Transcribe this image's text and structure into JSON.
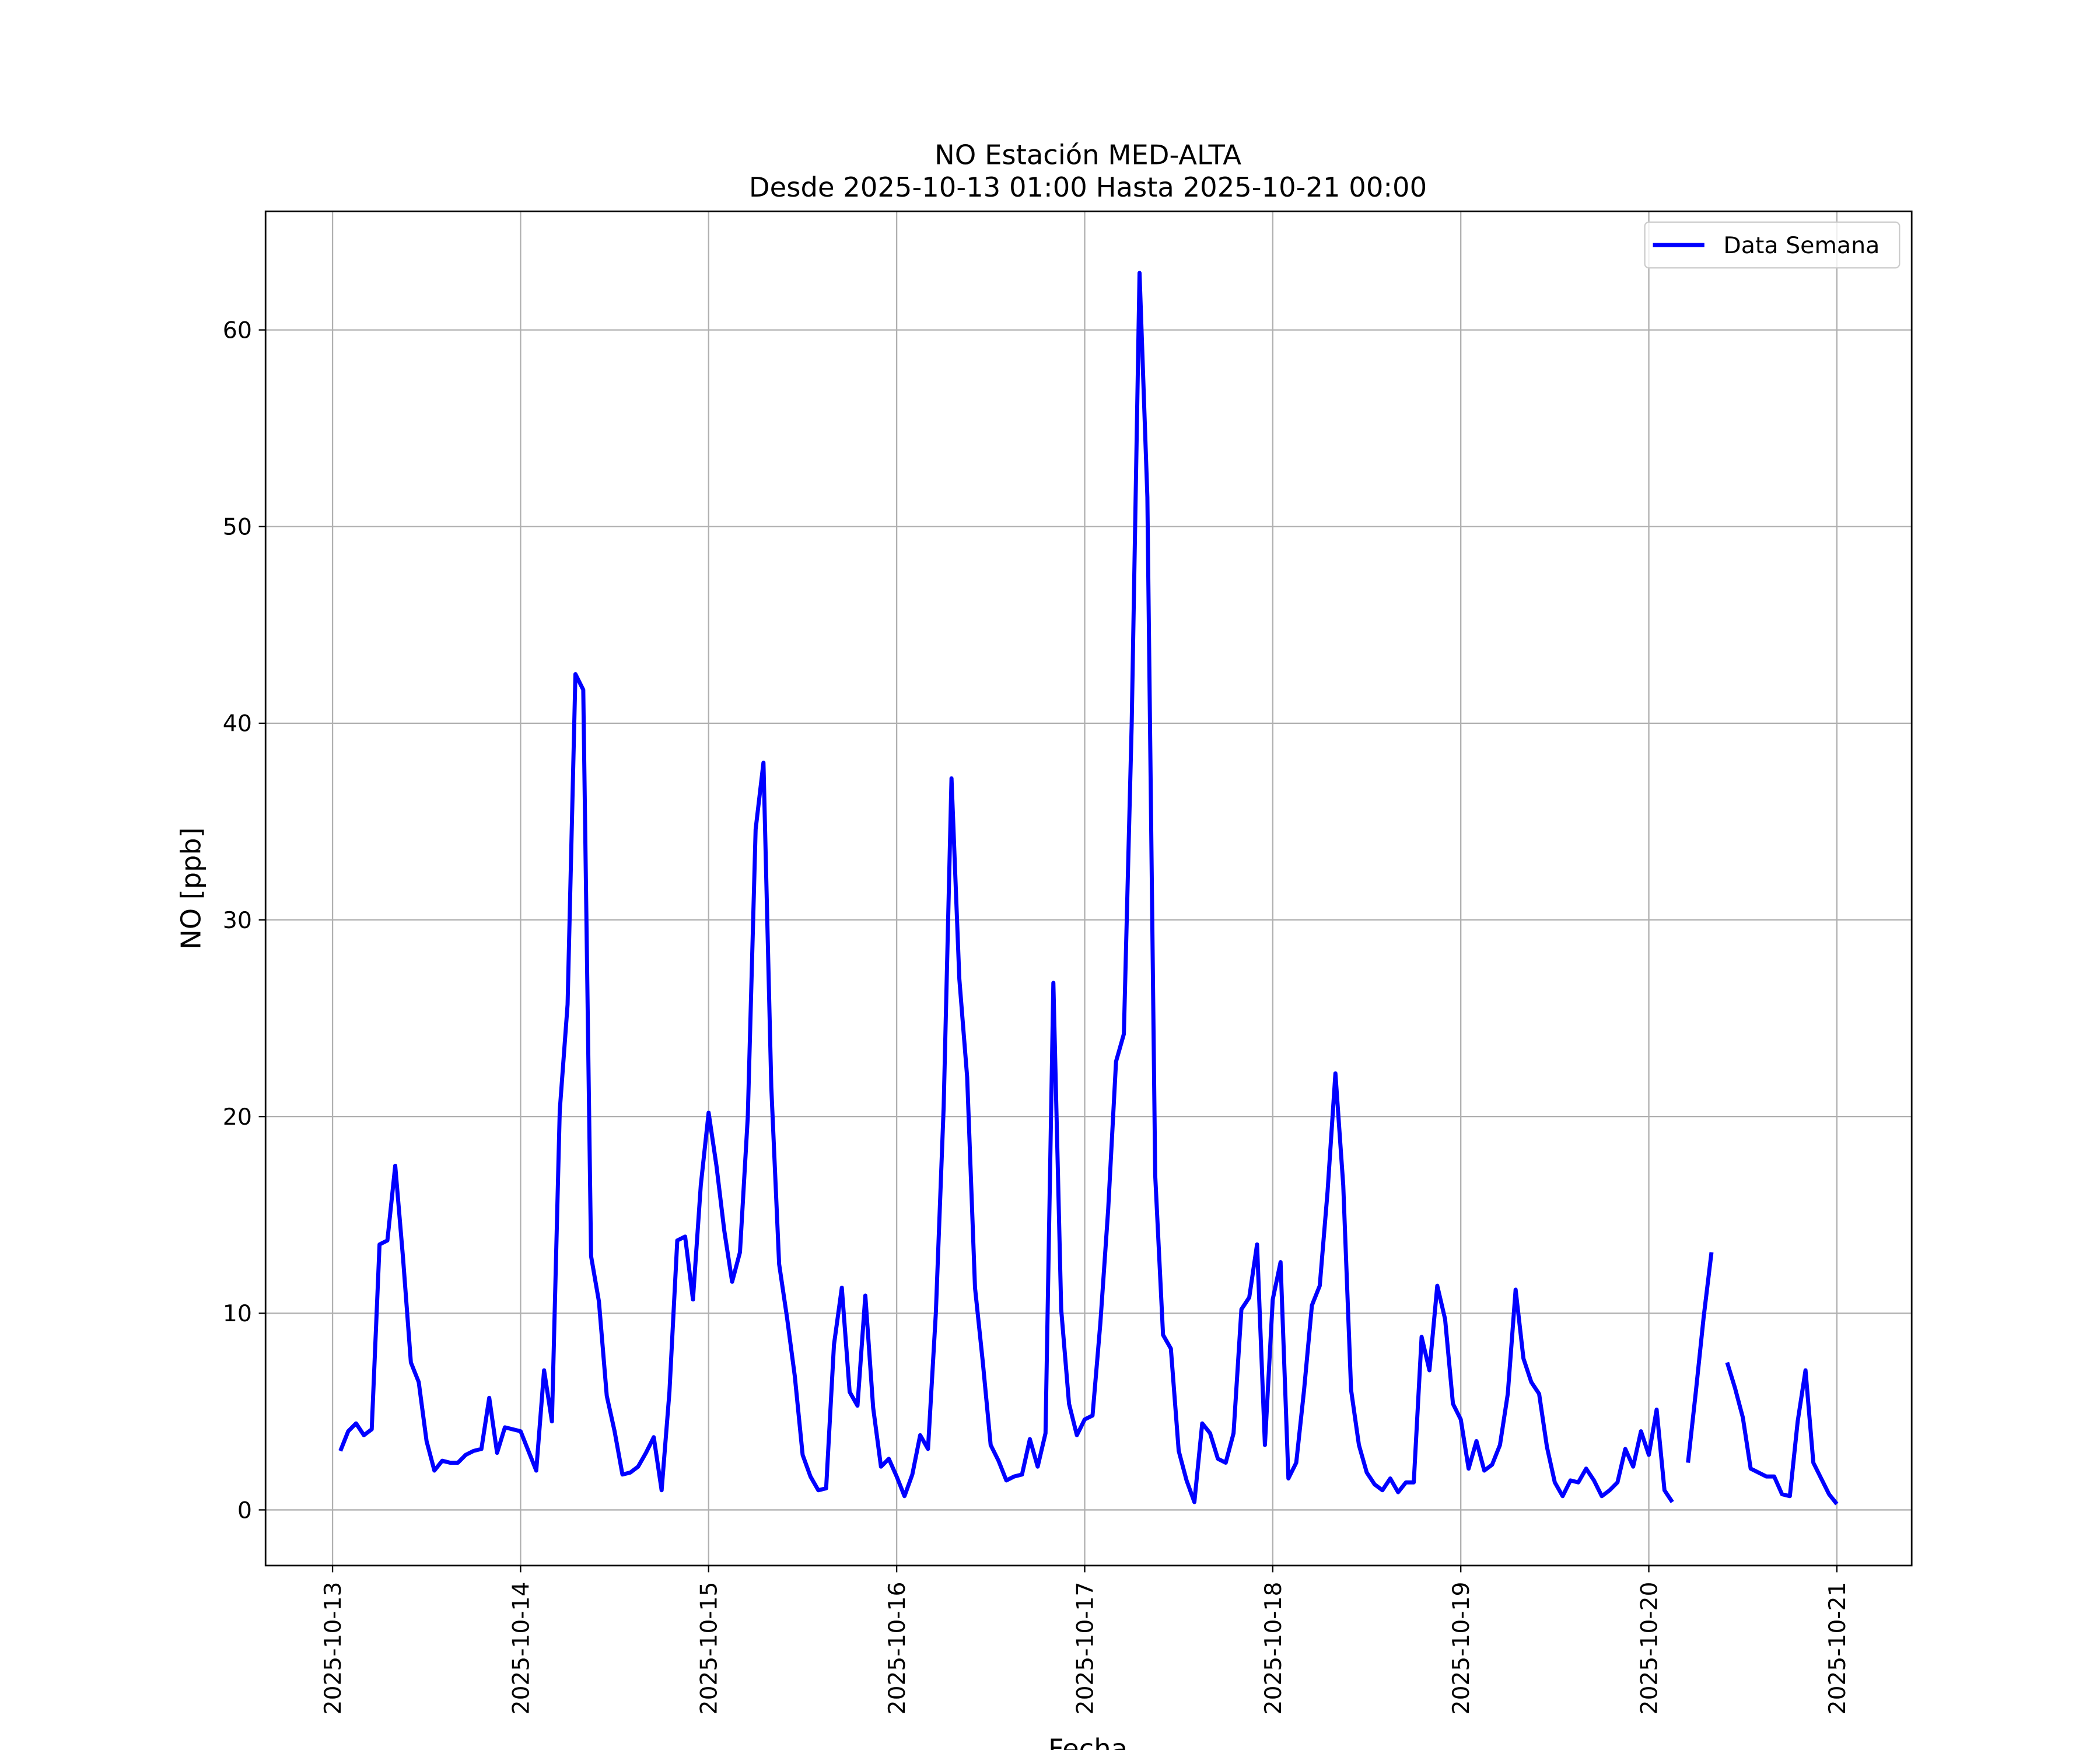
{
  "chart_data": {
    "type": "line",
    "title": "NO Estación MED-ALTA",
    "subtitle": "Desde 2025-10-13 01:00 Hasta 2025-10-21 00:00",
    "xlabel": "Fecha",
    "ylabel": "NO [ppb]",
    "x": [
      "2025-10-13 01:00",
      "2025-10-13 02:00",
      "2025-10-13 03:00",
      "2025-10-13 04:00",
      "2025-10-13 05:00",
      "2025-10-13 06:00",
      "2025-10-13 07:00",
      "2025-10-13 08:00",
      "2025-10-13 09:00",
      "2025-10-13 10:00",
      "2025-10-13 11:00",
      "2025-10-13 12:00",
      "2025-10-13 13:00",
      "2025-10-13 14:00",
      "2025-10-13 15:00",
      "2025-10-13 16:00",
      "2025-10-13 17:00",
      "2025-10-13 18:00",
      "2025-10-13 19:00",
      "2025-10-13 20:00",
      "2025-10-13 21:00",
      "2025-10-13 22:00",
      "2025-10-13 23:00",
      "2025-10-14 00:00",
      "2025-10-14 01:00",
      "2025-10-14 02:00",
      "2025-10-14 03:00",
      "2025-10-14 04:00",
      "2025-10-14 05:00",
      "2025-10-14 06:00",
      "2025-10-14 07:00",
      "2025-10-14 08:00",
      "2025-10-14 09:00",
      "2025-10-14 10:00",
      "2025-10-14 11:00",
      "2025-10-14 12:00",
      "2025-10-14 13:00",
      "2025-10-14 14:00",
      "2025-10-14 15:00",
      "2025-10-14 16:00",
      "2025-10-14 17:00",
      "2025-10-14 18:00",
      "2025-10-14 19:00",
      "2025-10-14 20:00",
      "2025-10-14 21:00",
      "2025-10-14 22:00",
      "2025-10-14 23:00",
      "2025-10-15 00:00",
      "2025-10-15 01:00",
      "2025-10-15 02:00",
      "2025-10-15 03:00",
      "2025-10-15 04:00",
      "2025-10-15 05:00",
      "2025-10-15 06:00",
      "2025-10-15 07:00",
      "2025-10-15 08:00",
      "2025-10-15 09:00",
      "2025-10-15 10:00",
      "2025-10-15 11:00",
      "2025-10-15 12:00",
      "2025-10-15 13:00",
      "2025-10-15 14:00",
      "2025-10-15 15:00",
      "2025-10-15 16:00",
      "2025-10-15 17:00",
      "2025-10-15 18:00",
      "2025-10-15 19:00",
      "2025-10-15 20:00",
      "2025-10-15 21:00",
      "2025-10-15 22:00",
      "2025-10-15 23:00",
      "2025-10-16 00:00",
      "2025-10-16 01:00",
      "2025-10-16 02:00",
      "2025-10-16 03:00",
      "2025-10-16 04:00",
      "2025-10-16 05:00",
      "2025-10-16 06:00",
      "2025-10-16 07:00",
      "2025-10-16 08:00",
      "2025-10-16 09:00",
      "2025-10-16 10:00",
      "2025-10-16 11:00",
      "2025-10-16 12:00",
      "2025-10-16 13:00",
      "2025-10-16 14:00",
      "2025-10-16 15:00",
      "2025-10-16 16:00",
      "2025-10-16 17:00",
      "2025-10-16 18:00",
      "2025-10-16 19:00",
      "2025-10-16 20:00",
      "2025-10-16 21:00",
      "2025-10-16 22:00",
      "2025-10-16 23:00",
      "2025-10-17 00:00",
      "2025-10-17 01:00",
      "2025-10-17 02:00",
      "2025-10-17 03:00",
      "2025-10-17 04:00",
      "2025-10-17 05:00",
      "2025-10-17 06:00",
      "2025-10-17 07:00",
      "2025-10-17 08:00",
      "2025-10-17 09:00",
      "2025-10-17 10:00",
      "2025-10-17 11:00",
      "2025-10-17 12:00",
      "2025-10-17 13:00",
      "2025-10-17 14:00",
      "2025-10-17 15:00",
      "2025-10-17 16:00",
      "2025-10-17 17:00",
      "2025-10-17 18:00",
      "2025-10-17 19:00",
      "2025-10-17 20:00",
      "2025-10-17 21:00",
      "2025-10-17 22:00",
      "2025-10-17 23:00",
      "2025-10-18 00:00",
      "2025-10-18 01:00",
      "2025-10-18 02:00",
      "2025-10-18 03:00",
      "2025-10-18 04:00",
      "2025-10-18 05:00",
      "2025-10-18 06:00",
      "2025-10-18 07:00",
      "2025-10-18 08:00",
      "2025-10-18 09:00",
      "2025-10-18 10:00",
      "2025-10-18 11:00",
      "2025-10-18 12:00",
      "2025-10-18 13:00",
      "2025-10-18 14:00",
      "2025-10-18 15:00",
      "2025-10-18 16:00",
      "2025-10-18 17:00",
      "2025-10-18 18:00",
      "2025-10-18 19:00",
      "2025-10-18 20:00",
      "2025-10-18 21:00",
      "2025-10-18 22:00",
      "2025-10-18 23:00",
      "2025-10-19 00:00",
      "2025-10-19 01:00",
      "2025-10-19 02:00",
      "2025-10-19 03:00",
      "2025-10-19 04:00",
      "2025-10-19 05:00",
      "2025-10-19 06:00",
      "2025-10-19 07:00",
      "2025-10-19 08:00",
      "2025-10-19 09:00",
      "2025-10-19 10:00",
      "2025-10-19 11:00",
      "2025-10-19 12:00",
      "2025-10-19 13:00",
      "2025-10-19 14:00",
      "2025-10-19 15:00",
      "2025-10-19 16:00",
      "2025-10-19 17:00",
      "2025-10-19 18:00",
      "2025-10-19 19:00",
      "2025-10-19 20:00",
      "2025-10-19 21:00",
      "2025-10-19 22:00",
      "2025-10-19 23:00",
      "2025-10-20 00:00",
      "2025-10-20 01:00",
      "2025-10-20 02:00",
      "2025-10-20 03:00",
      "2025-10-20 04:00",
      "2025-10-20 05:00",
      "2025-10-20 06:00",
      "2025-10-20 07:00",
      "2025-10-20 08:00",
      "2025-10-20 09:00",
      "2025-10-20 10:00",
      "2025-10-20 11:00",
      "2025-10-20 12:00",
      "2025-10-20 13:00",
      "2025-10-20 14:00",
      "2025-10-20 15:00",
      "2025-10-20 16:00",
      "2025-10-20 17:00",
      "2025-10-20 18:00",
      "2025-10-20 19:00",
      "2025-10-20 20:00",
      "2025-10-20 21:00",
      "2025-10-20 22:00",
      "2025-10-20 23:00",
      "2025-10-21 00:00"
    ],
    "series": [
      {
        "name": "Data Semana",
        "color": "#0000ff",
        "values": [
          3.0,
          4.0,
          4.4,
          3.8,
          4.1,
          13.5,
          13.7,
          17.5,
          12.8,
          7.5,
          6.5,
          3.5,
          2.0,
          2.5,
          2.4,
          2.4,
          2.8,
          3.0,
          3.1,
          5.7,
          2.9,
          4.2,
          4.1,
          4.0,
          3.0,
          2.0,
          7.1,
          4.5,
          20.3,
          25.7,
          42.5,
          41.7,
          12.9,
          10.6,
          5.8,
          4.0,
          1.8,
          1.9,
          2.2,
          2.9,
          3.7,
          1.0,
          6.0,
          13.7,
          13.9,
          10.7,
          16.5,
          20.2,
          17.5,
          14.2,
          11.6,
          13.1,
          20.0,
          34.6,
          38.0,
          21.5,
          12.5,
          9.8,
          6.8,
          2.8,
          1.7,
          1.0,
          1.1,
          8.4,
          11.3,
          6.0,
          5.3,
          10.9,
          5.2,
          2.2,
          2.6,
          1.7,
          0.7,
          1.8,
          3.8,
          3.1,
          10.0,
          20.5,
          37.2,
          27.0,
          22.0,
          11.3,
          7.5,
          3.3,
          2.5,
          1.5,
          1.7,
          1.8,
          3.6,
          2.2,
          3.9,
          26.8,
          10.2,
          5.4,
          3.8,
          4.6,
          4.8,
          9.5,
          15.3,
          22.8,
          24.2,
          40.0,
          62.9,
          51.5,
          17.0,
          8.9,
          8.2,
          3.0,
          1.5,
          0.4,
          4.4,
          3.9,
          2.6,
          2.4,
          3.9,
          10.2,
          10.8,
          13.5,
          3.3,
          10.7,
          12.6,
          1.6,
          2.4,
          6.1,
          10.4,
          11.4,
          16.2,
          22.2,
          16.5,
          6.1,
          3.3,
          1.9,
          1.3,
          1.0,
          1.6,
          0.9,
          1.4,
          1.4,
          8.8,
          7.1,
          11.4,
          9.7,
          5.4,
          4.6,
          2.1,
          3.5,
          2.0,
          2.3,
          3.3,
          5.9,
          11.2,
          7.7,
          6.5,
          5.9,
          3.2,
          1.4,
          0.7,
          1.5,
          1.4,
          2.1,
          1.5,
          0.7,
          1.0,
          1.4,
          3.1,
          2.2,
          4.0,
          2.8,
          5.1,
          1.0,
          0.4,
          null,
          2.4,
          6.0,
          9.8,
          13.1,
          null,
          7.5,
          6.2,
          4.7,
          2.1,
          1.9,
          1.7,
          1.7,
          0.8,
          0.7,
          4.5,
          7.1,
          2.4,
          1.6,
          0.8,
          0.3
        ]
      }
    ],
    "xlim": [
      "2025-10-12 15:27",
      "2025-10-21 09:33"
    ],
    "xticks": [
      "2025-10-13",
      "2025-10-14",
      "2025-10-15",
      "2025-10-16",
      "2025-10-17",
      "2025-10-18",
      "2025-10-19",
      "2025-10-20",
      "2025-10-21"
    ],
    "ylim": [
      -2.83,
      66.03
    ],
    "yticks": [
      0,
      10,
      20,
      30,
      40,
      50,
      60
    ],
    "grid": true,
    "legend": "upper right"
  }
}
